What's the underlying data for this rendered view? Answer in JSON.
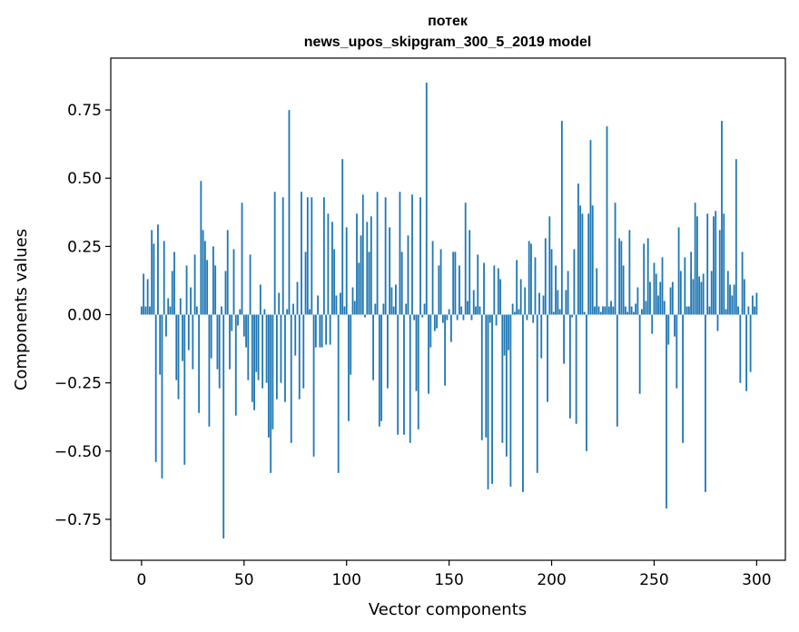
{
  "chart_data": {
    "type": "bar",
    "title": "потек",
    "subtitle": "news_upos_skipgram_300_5_2019 model",
    "xlabel": "Vector components",
    "ylabel": "Components values",
    "xlim": [
      -15,
      314
    ],
    "ylim": [
      -0.9,
      0.94
    ],
    "xticks": [
      0,
      50,
      100,
      150,
      200,
      250,
      300
    ],
    "xtick_labels": [
      "0",
      "50",
      "100",
      "150",
      "200",
      "250",
      "300"
    ],
    "yticks": [
      -0.75,
      -0.5,
      -0.25,
      0.0,
      0.25,
      0.5,
      0.75
    ],
    "ytick_labels": [
      "−0.75",
      "−0.50",
      "−0.25",
      "0.00",
      "0.25",
      "0.50",
      "0.75"
    ],
    "grid": false,
    "bar_color": "#1f77b4",
    "values": [
      0.03,
      0.15,
      0.03,
      0.13,
      0.03,
      0.31,
      0.26,
      -0.54,
      0.33,
      -0.22,
      -0.6,
      0.27,
      -0.08,
      0.06,
      0.03,
      0.16,
      0.23,
      -0.24,
      -0.31,
      0.06,
      -0.17,
      -0.55,
      0.18,
      -0.13,
      0.1,
      -0.2,
      0.22,
      0.03,
      -0.36,
      0.49,
      0.31,
      0.27,
      0.2,
      -0.41,
      -0.16,
      0.25,
      0.18,
      -0.2,
      -0.27,
      0.03,
      -0.82,
      0.16,
      0.31,
      -0.2,
      -0.06,
      0.24,
      -0.37,
      -0.04,
      0.02,
      0.41,
      -0.08,
      -0.12,
      -0.24,
      0.22,
      -0.32,
      -0.35,
      -0.21,
      -0.24,
      0.11,
      -0.27,
      0.02,
      -0.25,
      -0.45,
      -0.58,
      -0.42,
      0.45,
      -0.31,
      0.08,
      -0.25,
      0.43,
      -0.32,
      0.02,
      0.75,
      -0.47,
      0.04,
      -0.15,
      0.12,
      -0.31,
      0.45,
      -0.27,
      0.23,
      0.43,
      0.02,
      0.43,
      -0.52,
      -0.12,
      0.07,
      -0.12,
      -0.12,
      0.43,
      -0.11,
      0.37,
      -0.11,
      0.34,
      0.24,
      0.07,
      -0.58,
      0.08,
      0.57,
      0.03,
      0.32,
      -0.39,
      -0.22,
      0.1,
      0.05,
      0.37,
      0.19,
      0.29,
      0.44,
      -0.01,
      0.34,
      0.23,
      0.36,
      -0.24,
      0.04,
      0.45,
      -0.41,
      -0.39,
      0.04,
      0.43,
      -0.27,
      0.32,
      0.1,
      0.03,
      0.11,
      -0.44,
      0.45,
      0.23,
      -0.44,
      0.04,
      0.29,
      -0.47,
      0.44,
      -0.02,
      -0.28,
      -0.42,
      0.43,
      -0.01,
      0.04,
      0.85,
      -0.29,
      -0.12,
      0.27,
      -0.06,
      -0.05,
      0.18,
      0.24,
      -0.03,
      -0.26,
      -0.02,
      0.02,
      -0.1,
      0.23,
      0.23,
      -0.02,
      0.18,
      0.03,
      -0.02,
      0.41,
      0.05,
      0.31,
      -0.02,
      0.09,
      0.03,
      0.22,
      0.03,
      -0.46,
      0.19,
      -0.45,
      -0.64,
      -0.03,
      -0.62,
      0.18,
      -0.04,
      0.17,
      0.13,
      -0.47,
      -0.15,
      -0.52,
      -0.13,
      -0.63,
      0.04,
      0.01,
      0.2,
      0.02,
      0.13,
      -0.65,
      0.1,
      -0.02,
      0.27,
      0.26,
      -0.03,
      0.21,
      -0.58,
      0.08,
      -0.16,
      0.07,
      0.28,
      -0.32,
      0.36,
      0.24,
      0.01,
      0.18,
      0.09,
      0.02,
      0.71,
      -0.18,
      0.09,
      0.16,
      -0.38,
      -0.01,
      0.24,
      -0.4,
      0.48,
      0.4,
      0.37,
      0.01,
      -0.5,
      0.37,
      0.64,
      0.4,
      0.03,
      0.17,
      0.03,
      0.01,
      0.03,
      0.03,
      0.69,
      0.03,
      0.05,
      0.03,
      0.41,
      -0.41,
      0.28,
      0.27,
      0.18,
      0.03,
      0.01,
      0.31,
      0.03,
      0.01,
      0.04,
      0.1,
      -0.29,
      0.02,
      0.26,
      0.05,
      0.28,
      0.12,
      -0.07,
      0.19,
      0.15,
      0.07,
      0.12,
      0.21,
      0.05,
      -0.71,
      -0.11,
      0.1,
      0.12,
      -0.08,
      -0.27,
      0.32,
      0.16,
      -0.47,
      0.21,
      0.03,
      0.03,
      0.23,
      0.13,
      0.41,
      0.36,
      0.14,
      0.12,
      0.15,
      -0.65,
      0.37,
      0.03,
      0.16,
      0.36,
      0.38,
      -0.06,
      0.31,
      0.71,
      0.37,
      0.02,
      0.16,
      0.11,
      0.07,
      0.11,
      0.57,
      0.03,
      -0.25,
      0.23,
      0.13,
      -0.28,
      0.03,
      -0.21,
      0.07,
      0.03,
      0.08
    ]
  }
}
